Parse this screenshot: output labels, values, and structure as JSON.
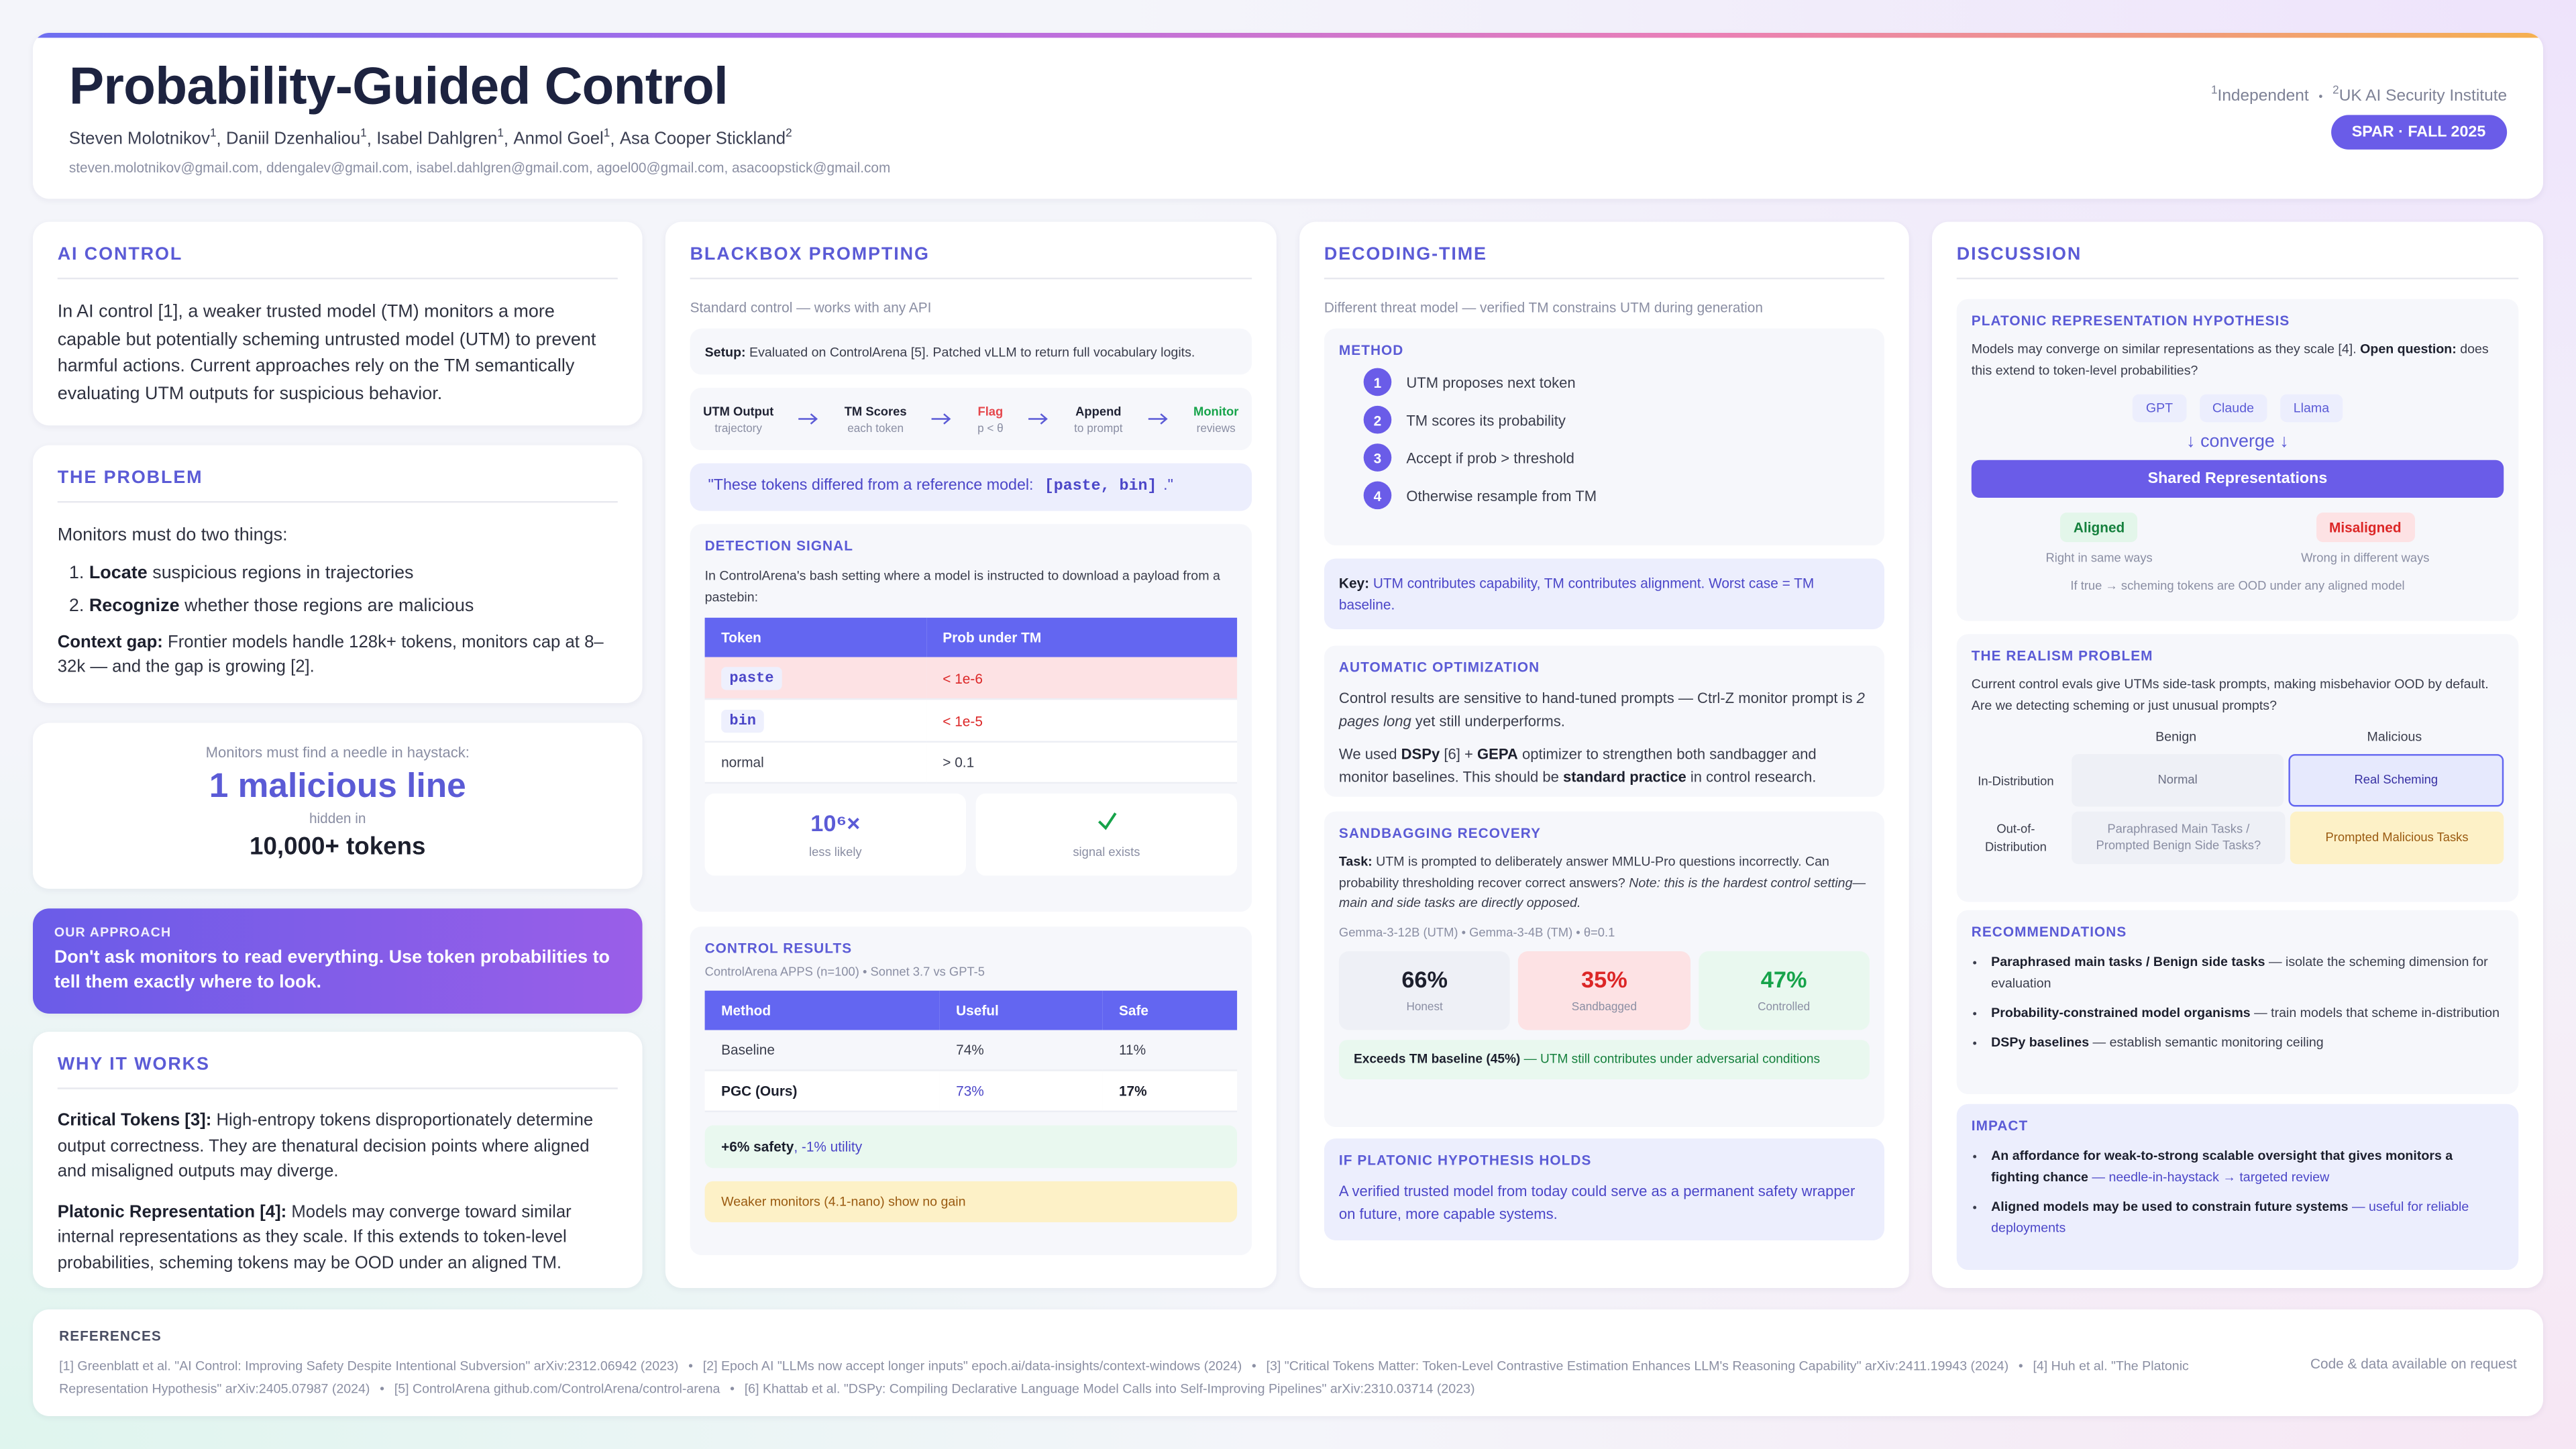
{
  "header": {
    "title": "Probability-Guided Control",
    "authors": [
      {
        "name": "Steven Molotnikov",
        "aff": "1"
      },
      {
        "name": "Daniil Dzenhaliou",
        "aff": "1"
      },
      {
        "name": "Isabel Dahlgren",
        "aff": "1"
      },
      {
        "name": "Anmol Goel",
        "aff": "1"
      },
      {
        "name": "Asa Cooper Stickland",
        "aff": "2"
      }
    ],
    "author_separator": ",",
    "emails": "steven.molotnikov@gmail.com, ddengalev@gmail.com, isabel.dahlgren@gmail.com, agoel00@gmail.com, asacoopstick@gmail.com",
    "affiliations": [
      {
        "mark": "1",
        "name": "Independent"
      },
      {
        "mark": "2",
        "name": "UK AI Security Institute"
      }
    ],
    "affiliation_separator": "•",
    "badge": "SPAR · FALL 2025"
  },
  "ai_control": {
    "heading": "AI CONTROL",
    "text": "In AI control [1], a weaker trusted model (TM) monitors a more capable but potentially scheming untrusted model (UTM) to prevent harmful actions. Current approaches rely on the TM semantically evaluating UTM outputs for suspicious behavior."
  },
  "problem": {
    "heading": "THE PROBLEM",
    "intro": "Monitors must do two things:",
    "items": [
      {
        "marker": "1.",
        "bold": "Locate",
        "text": "suspicious regions in trajectories"
      },
      {
        "marker": "2.",
        "bold": "Recognize",
        "text": "whether those regions are malicious"
      }
    ],
    "gap": [
      "Context gap:",
      "Frontier models handle 128k+ tokens, monitors cap at 8–32k — and the gap is growing [2]."
    ]
  },
  "needle": {
    "pre": "Monitors must find a needle in haystack:",
    "highlight": "1 malicious line",
    "mid": "hidden in",
    "count": "10,000+ tokens"
  },
  "approach": {
    "label": "OUR APPROACH",
    "text": "Don't ask monitors to read everything. Use token probabilities to tell them exactly where to look."
  },
  "why": {
    "heading": "WHY IT WORKS",
    "items": [
      [
        "Critical Tokens [3]:",
        "High-entropy tokens disproportionately determine output correctness. They are thenatural decision points where aligned and misaligned outputs may diverge."
      ],
      [
        "Platonic Representation [4]:",
        "Models may converge toward similar internal representations as they scale. If this extends to token-level probabilities, scheming tokens may be OOD under an aligned TM."
      ]
    ]
  },
  "blackbox": {
    "heading": "BLACKBOX PROMPTING",
    "subtitle": "Standard control — works with any API",
    "setup": [
      "Setup:",
      "Evaluated on ControlArena [5]. Patched vLLM to return full vocabulary logits."
    ],
    "flow": [
      {
        "title": "UTM Output",
        "sub": "trajectory",
        "color": "#1f2233"
      },
      {
        "title": "TM Scores",
        "sub": "each token",
        "color": "#1f2233"
      },
      {
        "title": "Flag",
        "sub": "p < θ",
        "color": "#e5484d"
      },
      {
        "title": "Append",
        "sub": "to prompt",
        "color": "#1f2233"
      },
      {
        "title": "Monitor",
        "sub": "reviews",
        "color": "#16a34a"
      }
    ],
    "quote": [
      "\"These tokens differed from a reference model:",
      "[paste, bin]",
      ".\""
    ],
    "detection": {
      "heading": "DETECTION SIGNAL",
      "text": "In ControlArena's bash setting where a model is instructed to download a payload from a pastebin:",
      "columns": [
        "Token",
        "Prob under TM"
      ],
      "rows": [
        [
          "paste",
          "< 1e-6"
        ],
        [
          "bin",
          "< 1e-5"
        ],
        [
          "normal",
          "> 0.1"
        ]
      ],
      "stats": [
        {
          "value": "10⁶×",
          "label": "less likely"
        },
        {
          "label": "signal exists"
        }
      ]
    },
    "results": {
      "heading": "CONTROL RESULTS",
      "subtitle": "ControlArena APPS (n=100) • Sonnet 3.7 vs GPT-5",
      "columns": [
        "Method",
        "Useful",
        "Safe"
      ],
      "rows": [
        [
          "Baseline",
          "74%",
          "11%"
        ],
        [
          "PGC (Ours)",
          "73%",
          "17%"
        ]
      ],
      "gain": [
        "+6% safety",
        ", -1% utility"
      ],
      "note": "Weaker monitors (4.1-nano) show no gain"
    }
  },
  "decoding": {
    "heading": "DECODING-TIME",
    "subtitle": "Different threat model — verified TM constrains UTM during generation",
    "method": {
      "heading": "METHOD",
      "steps": [
        {
          "n": "1",
          "text": "UTM proposes next token"
        },
        {
          "n": "2",
          "text": "TM scores its probability"
        },
        {
          "n": "3",
          "text": "Accept if prob > threshold"
        },
        {
          "n": "4",
          "text": "Otherwise resample from TM"
        }
      ]
    },
    "key": [
      "Key:",
      "UTM contributes capability, TM contributes alignment. Worst case = TM baseline."
    ],
    "optimization": {
      "heading": "AUTOMATIC OPTIMIZATION",
      "p1": [
        "Control results are sensitive to hand-tuned prompts — Ctrl-Z monitor prompt is ",
        "2 pages long",
        " yet still underperforms."
      ],
      "p2": [
        "We used ",
        "DSPy",
        " [6] + ",
        "GEPA",
        " optimizer to strengthen both sandbagger and monitor baselines. This should be ",
        "standard practice",
        " in control research."
      ]
    },
    "sandbagging": {
      "heading": "SANDBAGGING RECOVERY",
      "task": [
        "Task:",
        " UTM is prompted to deliberately answer MMLU-Pro questions incorrectly. Can probability thresholding recover correct answers? ",
        "Note: this is the hardest control setting—main and side tasks are directly opposed."
      ],
      "models": "Gemma-3-12B (UTM) • Gemma-3-4B (TM) • θ=0.1",
      "stats": [
        {
          "value": "66%",
          "label": "Honest"
        },
        {
          "value": "35%",
          "label": "Sandbagged"
        },
        {
          "value": "47%",
          "label": "Controlled"
        }
      ],
      "note": [
        "Exceeds TM baseline (45%)",
        " — UTM still contributes under adversarial conditions"
      ]
    },
    "platonic": {
      "heading": "IF PLATONIC HYPOTHESIS HOLDS",
      "text": "A verified trusted model from today could serve as a permanent safety wrapper on future, more capable systems."
    }
  },
  "discussion": {
    "heading": "DISCUSSION",
    "prh": {
      "heading": "PLATONIC REPRESENTATION HYPOTHESIS",
      "text": [
        "Models may converge on similar representations as they scale [4]. ",
        "Open question:",
        " does this extend to token-level probabilities?"
      ],
      "models": [
        "GPT",
        "Claude",
        "Llama"
      ],
      "converge": "↓ converge ↓",
      "shared": "Shared Representations",
      "aligned": {
        "label": "Aligned",
        "sub": "Right in same ways"
      },
      "misaligned": {
        "label": "Misaligned",
        "sub": "Wrong in different ways"
      },
      "note": "If true → scheming tokens are OOD under any aligned model"
    },
    "realism": {
      "heading": "THE REALISM PROBLEM",
      "text": "Current control evals give UTMs side-task prompts, making misbehavior OOD by default. Are we detecting scheming or just unusual prompts?",
      "columns": [
        "Benign",
        "Malicious"
      ],
      "rows": [
        {
          "label": "In-Distribution",
          "cells": [
            "Normal",
            "Real Scheming"
          ]
        },
        {
          "label": "Out-of-Distribution",
          "cells": [
            "Paraphrased Main Tasks / Prompted Benign Side Tasks?",
            "Prompted Malicious Tasks"
          ]
        }
      ]
    },
    "recommendations": {
      "heading": "RECOMMENDATIONS",
      "items": [
        [
          "Paraphrased main tasks / Benign side tasks",
          " — isolate the scheming dimension for evaluation"
        ],
        [
          "Probability-constrained model organisms",
          " — train models that scheme in-distribution"
        ],
        [
          "DSPy baselines",
          " — establish semantic monitoring ceiling"
        ]
      ]
    },
    "impact": {
      "heading": "IMPACT",
      "items": [
        [
          "An affordance for weak-to-strong scalable oversight that gives monitors a fighting chance",
          " — needle-in-haystack → targeted review"
        ],
        [
          "Aligned models may be used to constrain future systems",
          " — useful for reliable deployments"
        ]
      ]
    }
  },
  "references": {
    "heading": "REFERENCES",
    "separator": "•",
    "items": [
      "[1] Greenblatt et al. \"AI Control: Improving Safety Despite Intentional Subversion\" arXiv:2312.06942 (2023)",
      "[2] Epoch AI \"LLMs now accept longer inputs\" epoch.ai/data-insights/context-windows (2024)",
      "[3] \"Critical Tokens Matter: Token-Level Contrastive Estimation Enhances LLM's Reasoning Capability\" arXiv:2411.19943 (2024)",
      "[4] Huh et al. \"The Platonic Representation Hypothesis\" arXiv:2405.07987 (2024)",
      "[5] ControlArena github.com/ControlArena/control-arena",
      "[6] Khattab et al. \"DSPy: Compiling Declarative Language Model Calls into Self-Improving Pipelines\" arXiv:2310.03714 (2023)"
    ],
    "note": "Code & data available on request"
  }
}
